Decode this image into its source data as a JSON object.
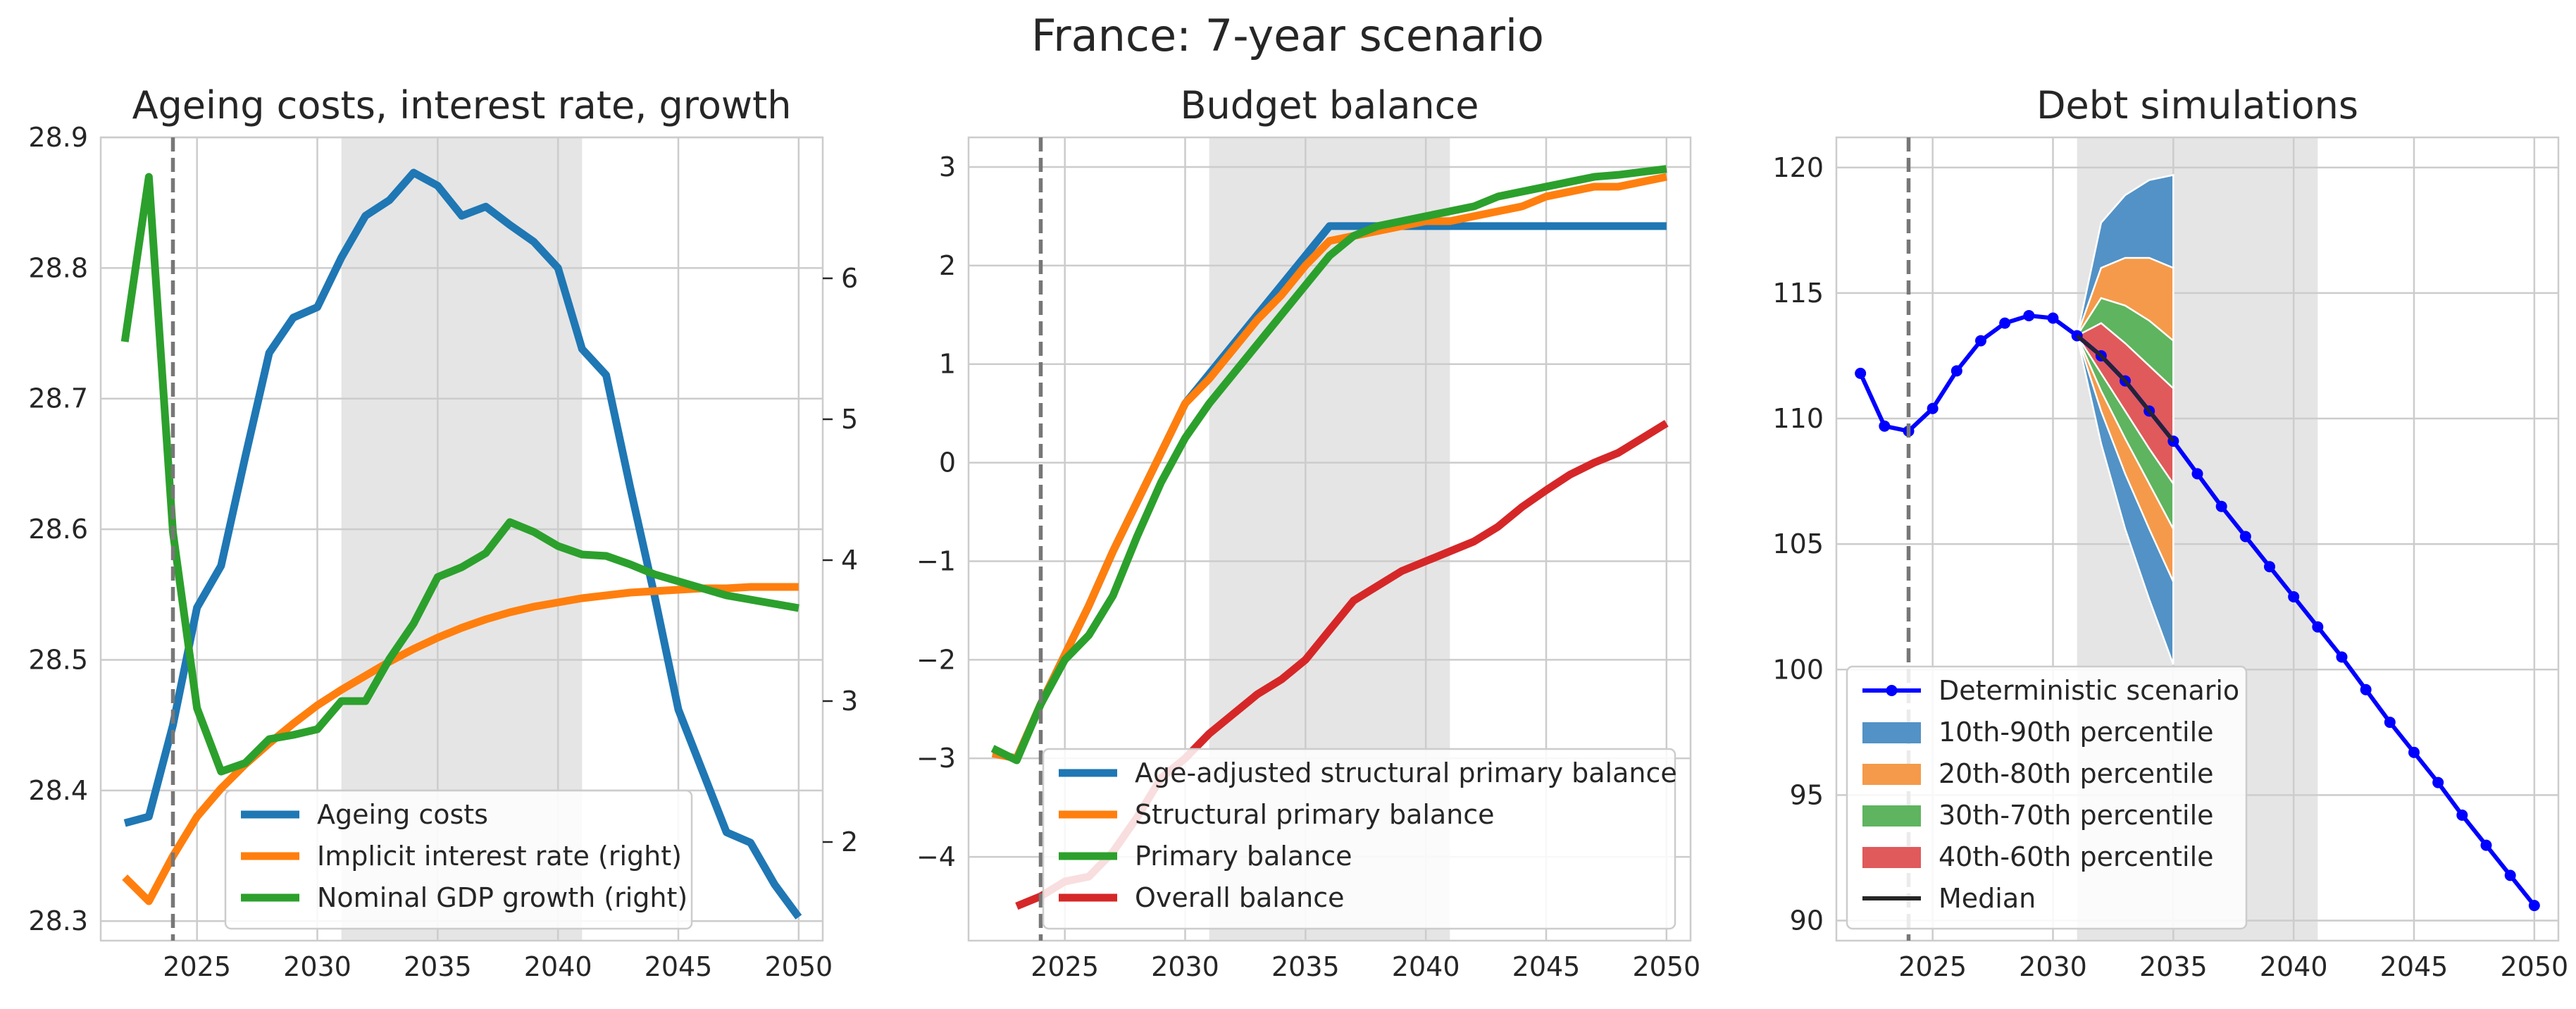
{
  "suptitle": "France: 7-year scenario",
  "colors": {
    "blue": "#1f77b4",
    "orange": "#ff7f0e",
    "green": "#2ca02c",
    "red": "#d62728",
    "det": "#0000ff",
    "shade": "#e5e5e5",
    "grid": "#cccccc",
    "axis": "#cccccc",
    "text": "#262626",
    "fan10": "#5292c6",
    "fan20": "#f59a4a",
    "fan30": "#5fb45f",
    "fan40": "#e05a5b",
    "median": "#262626"
  },
  "chart_data": [
    {
      "type": "line",
      "title": "Ageing costs, interest rate, growth",
      "x_range": [
        2021,
        2051
      ],
      "xticks": [
        2025,
        2030,
        2035,
        2040,
        2045,
        2050
      ],
      "xtick_labels": [
        "2025",
        "2030",
        "2035",
        "2040",
        "2045",
        "2050"
      ],
      "shaded_region": [
        2031,
        2041
      ],
      "vline": 2024,
      "ylim": [
        28.285,
        28.9
      ],
      "yticks": [
        28.3,
        28.4,
        28.5,
        28.6,
        28.7,
        28.8,
        28.9
      ],
      "ytick_labels": [
        "28.3",
        "28.4",
        "28.5",
        "28.6",
        "28.7",
        "28.8",
        "28.9"
      ],
      "ylim_right": [
        1.3,
        7.0
      ],
      "yticks_right": [
        2,
        3,
        4,
        5,
        6
      ],
      "ytick_labels_right": [
        "2",
        "3",
        "4",
        "5",
        "6"
      ],
      "legend_position": "lower-left",
      "series": [
        {
          "name": "Ageing costs",
          "color": "blue",
          "axis": "left",
          "x": [
            2022,
            2023,
            2024,
            2025,
            2026,
            2027,
            2028,
            2029,
            2030,
            2031,
            2032,
            2033,
            2034,
            2035,
            2036,
            2037,
            2038,
            2039,
            2040,
            2041,
            2042,
            2043,
            2044,
            2045,
            2046,
            2047,
            2048,
            2049,
            2050
          ],
          "values": [
            28.375,
            28.38,
            28.45,
            28.54,
            28.572,
            28.655,
            28.735,
            28.762,
            28.77,
            28.808,
            28.84,
            28.852,
            28.873,
            28.863,
            28.84,
            28.847,
            28.833,
            28.82,
            28.8,
            28.738,
            28.718,
            28.632,
            28.55,
            28.462,
            28.415,
            28.368,
            28.36,
            28.328,
            28.303
          ]
        },
        {
          "name": "Implicit interest rate (right)",
          "color": "orange",
          "axis": "right",
          "x": [
            2022,
            2023,
            2024,
            2025,
            2026,
            2027,
            2028,
            2029,
            2030,
            2031,
            2032,
            2033,
            2034,
            2035,
            2036,
            2037,
            2038,
            2039,
            2040,
            2041,
            2042,
            2043,
            2044,
            2045,
            2046,
            2047,
            2048,
            2049,
            2050
          ],
          "values": [
            1.75,
            1.58,
            1.9,
            2.18,
            2.38,
            2.55,
            2.7,
            2.84,
            2.97,
            3.08,
            3.18,
            3.28,
            3.37,
            3.45,
            3.52,
            3.58,
            3.63,
            3.67,
            3.7,
            3.73,
            3.75,
            3.77,
            3.78,
            3.79,
            3.8,
            3.8,
            3.81,
            3.81,
            3.81
          ]
        },
        {
          "name": "Nominal GDP growth (right)",
          "color": "green",
          "axis": "right",
          "x": [
            2022,
            2023,
            2024,
            2025,
            2026,
            2027,
            2028,
            2029,
            2030,
            2031,
            2032,
            2033,
            2034,
            2035,
            2036,
            2037,
            2038,
            2039,
            2040,
            2041,
            2042,
            2043,
            2044,
            2045,
            2046,
            2047,
            2048,
            2049,
            2050
          ],
          "values": [
            5.55,
            6.72,
            4.2,
            2.95,
            2.5,
            2.56,
            2.73,
            2.76,
            2.8,
            3.0,
            3.0,
            3.3,
            3.55,
            3.88,
            3.95,
            4.05,
            4.27,
            4.2,
            4.1,
            4.04,
            4.03,
            3.97,
            3.9,
            3.85,
            3.8,
            3.75,
            3.72,
            3.69,
            3.66
          ]
        }
      ]
    },
    {
      "type": "line",
      "title": "Budget balance",
      "x_range": [
        2021,
        2051
      ],
      "xticks": [
        2025,
        2030,
        2035,
        2040,
        2045,
        2050
      ],
      "xtick_labels": [
        "2025",
        "2030",
        "2035",
        "2040",
        "2045",
        "2050"
      ],
      "shaded_region": [
        2031,
        2041
      ],
      "vline": 2024,
      "ylim": [
        -4.85,
        3.3
      ],
      "yticks": [
        -4,
        -3,
        -2,
        -1,
        0,
        1,
        2,
        3
      ],
      "ytick_labels": [
        "−4",
        "−3",
        "−2",
        "−1",
        "0",
        "1",
        "2",
        "3"
      ],
      "legend_position": "lower-right",
      "series": [
        {
          "name": "Age-adjusted structural primary balance",
          "color": "blue",
          "x": [
            2022,
            2023,
            2024,
            2025,
            2026,
            2027,
            2028,
            2029,
            2030,
            2031,
            2032,
            2033,
            2034,
            2035,
            2036,
            2037,
            2038,
            2039,
            2040,
            2041,
            2042,
            2043,
            2044,
            2045,
            2046,
            2047,
            2048,
            2049,
            2050
          ],
          "values": [
            -2.95,
            -3.0,
            -2.45,
            -1.95,
            -1.45,
            -0.9,
            -0.4,
            0.1,
            0.6,
            0.9,
            1.2,
            1.5,
            1.8,
            2.1,
            2.4,
            2.4,
            2.4,
            2.4,
            2.4,
            2.4,
            2.4,
            2.4,
            2.4,
            2.4,
            2.4,
            2.4,
            2.4,
            2.4,
            2.4
          ]
        },
        {
          "name": "Structural primary balance",
          "color": "orange",
          "x": [
            2022,
            2023,
            2024,
            2025,
            2026,
            2027,
            2028,
            2029,
            2030,
            2031,
            2032,
            2033,
            2034,
            2035,
            2036,
            2037,
            2038,
            2039,
            2040,
            2041,
            2042,
            2043,
            2044,
            2045,
            2046,
            2047,
            2048,
            2049,
            2050
          ],
          "values": [
            -2.95,
            -3.0,
            -2.45,
            -1.95,
            -1.45,
            -0.9,
            -0.4,
            0.1,
            0.6,
            0.85,
            1.15,
            1.45,
            1.7,
            2.0,
            2.25,
            2.3,
            2.35,
            2.4,
            2.45,
            2.45,
            2.5,
            2.55,
            2.6,
            2.7,
            2.75,
            2.8,
            2.8,
            2.85,
            2.9
          ]
        },
        {
          "name": "Primary balance",
          "color": "green",
          "x": [
            2022,
            2023,
            2024,
            2025,
            2026,
            2027,
            2028,
            2029,
            2030,
            2031,
            2032,
            2033,
            2034,
            2035,
            2036,
            2037,
            2038,
            2039,
            2040,
            2041,
            2042,
            2043,
            2044,
            2045,
            2046,
            2047,
            2048,
            2049,
            2050
          ],
          "values": [
            -2.9,
            -3.02,
            -2.45,
            -2.0,
            -1.75,
            -1.35,
            -0.75,
            -0.2,
            0.25,
            0.6,
            0.9,
            1.2,
            1.5,
            1.8,
            2.1,
            2.3,
            2.4,
            2.45,
            2.5,
            2.55,
            2.6,
            2.7,
            2.75,
            2.8,
            2.85,
            2.9,
            2.92,
            2.95,
            2.98
          ]
        },
        {
          "name": "Overall balance",
          "color": "red",
          "x": [
            2023,
            2024,
            2025,
            2026,
            2027,
            2028,
            2029,
            2030,
            2031,
            2032,
            2033,
            2034,
            2035,
            2036,
            2037,
            2038,
            2039,
            2040,
            2041,
            2042,
            2043,
            2044,
            2045,
            2046,
            2047,
            2048,
            2049,
            2050
          ],
          "values": [
            -4.5,
            -4.4,
            -4.25,
            -4.2,
            -3.95,
            -3.6,
            -3.2,
            -3.0,
            -2.75,
            -2.55,
            -2.35,
            -2.2,
            -2.0,
            -1.7,
            -1.4,
            -1.25,
            -1.1,
            -1.0,
            -0.9,
            -0.8,
            -0.65,
            -0.45,
            -0.28,
            -0.12,
            0.0,
            0.1,
            0.25,
            0.4
          ]
        }
      ]
    },
    {
      "type": "line",
      "title": "Debt simulations",
      "x_range": [
        2021,
        2051
      ],
      "xticks": [
        2025,
        2030,
        2035,
        2040,
        2045,
        2050
      ],
      "xtick_labels": [
        "2025",
        "2030",
        "2035",
        "2040",
        "2045",
        "2050"
      ],
      "shaded_region": [
        2031,
        2041
      ],
      "vline": 2024,
      "ylim": [
        89.2,
        121.2
      ],
      "yticks": [
        90,
        95,
        100,
        105,
        110,
        115,
        120
      ],
      "ytick_labels": [
        "90",
        "95",
        "100",
        "105",
        "110",
        "115",
        "120"
      ],
      "legend_position": "lower-left",
      "series": [
        {
          "name": "Deterministic scenario",
          "color": "det",
          "marker": "circle",
          "x": [
            2022,
            2023,
            2024,
            2025,
            2026,
            2027,
            2028,
            2029,
            2030,
            2031,
            2032,
            2033,
            2034,
            2035,
            2036,
            2037,
            2038,
            2039,
            2040,
            2041,
            2042,
            2043,
            2044,
            2045,
            2046,
            2047,
            2048,
            2049,
            2050
          ],
          "values": [
            111.8,
            109.7,
            109.5,
            110.4,
            111.9,
            113.1,
            113.8,
            114.1,
            114.0,
            113.3,
            112.5,
            111.5,
            110.3,
            109.1,
            107.8,
            106.5,
            105.3,
            104.1,
            102.9,
            101.7,
            100.5,
            99.2,
            97.9,
            96.7,
            95.5,
            94.2,
            93.0,
            91.8,
            90.6
          ]
        },
        {
          "name": "Median",
          "color": "median",
          "style": "line",
          "x": [
            2031,
            2032,
            2033,
            2034,
            2035
          ],
          "values": [
            113.3,
            112.5,
            111.5,
            110.3,
            109.1
          ]
        }
      ],
      "fan": {
        "x": [
          2031,
          2032,
          2033,
          2034,
          2035
        ],
        "bands": [
          {
            "name": "10th-90th percentile",
            "color": "fan10",
            "low": [
              113.3,
              109.0,
              105.6,
              102.8,
              100.2
            ],
            "high": [
              113.3,
              117.8,
              118.9,
              119.5,
              119.7
            ]
          },
          {
            "name": "20th-80th percentile",
            "color": "fan20",
            "low": [
              113.3,
              110.3,
              107.8,
              105.6,
              103.5
            ],
            "high": [
              113.3,
              116.0,
              116.4,
              116.4,
              116.0
            ]
          },
          {
            "name": "30th-70th percentile",
            "color": "fan30",
            "low": [
              113.3,
              111.1,
              109.2,
              107.4,
              105.6
            ],
            "high": [
              113.3,
              114.8,
              114.5,
              113.9,
              113.1
            ]
          },
          {
            "name": "40th-60th percentile",
            "color": "fan40",
            "low": [
              113.3,
              111.8,
              110.3,
              108.8,
              107.4
            ],
            "high": [
              113.3,
              113.8,
              113.0,
              112.1,
              111.2
            ]
          }
        ]
      }
    }
  ]
}
